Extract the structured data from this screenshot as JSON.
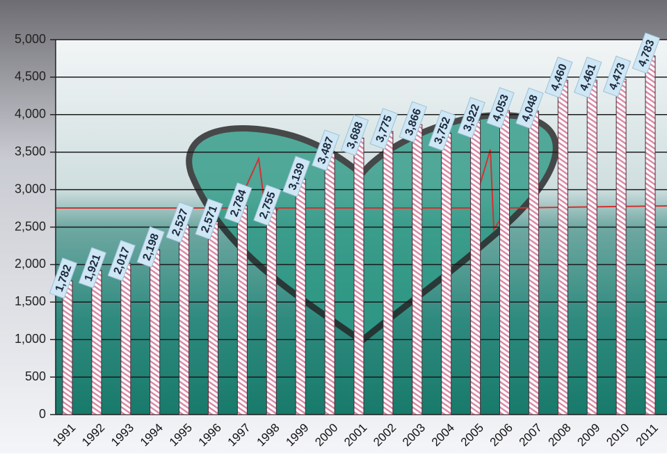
{
  "chart_data": {
    "type": "bar",
    "categories": [
      "1991",
      "1992",
      "1993",
      "1994",
      "1995",
      "1996",
      "1997",
      "1998",
      "1999",
      "2000",
      "2001",
      "2002",
      "2003",
      "2004",
      "2005",
      "2006",
      "2007",
      "2008",
      "2009",
      "2010",
      "2011"
    ],
    "values": [
      1782,
      1921,
      2017,
      2198,
      2527,
      2571,
      2784,
      2755,
      3139,
      3487,
      3688,
      3775,
      3866,
      3752,
      3922,
      4053,
      4048,
      4460,
      4461,
      4473,
      4783
    ],
    "value_labels": [
      "1,782",
      "1,921",
      "2,017",
      "2,198",
      "2,527",
      "2,571",
      "2,784",
      "2,755",
      "3,139",
      "3,487",
      "3,688",
      "3,775",
      "3,866",
      "3,752",
      "3,922",
      "4,053",
      "4,048",
      "4,460",
      "4,461",
      "4,473",
      "4,783"
    ],
    "color": "#e8a0b8",
    "ylim": [
      0,
      5000
    ],
    "yticks": [
      0,
      500,
      {
        "value": 1000,
        "label": "1,000"
      },
      {
        "value": 1500,
        "label": "1,500"
      },
      {
        "value": 2000,
        "label": "2,000"
      },
      {
        "value": 2500,
        "label": "2,500"
      },
      {
        "value": 3000,
        "label": "3,000"
      },
      {
        "value": 3500,
        "label": "3,500"
      },
      {
        "value": 4000,
        "label": "4,000"
      },
      {
        "value": 4500,
        "label": "4,500"
      },
      {
        "value": 5000,
        "label": "5,000"
      }
    ],
    "grid": true
  }
}
